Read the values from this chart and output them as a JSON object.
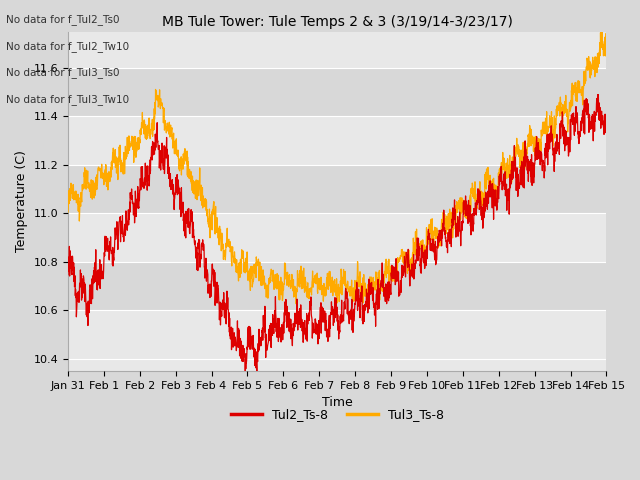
{
  "title": "MB Tule Tower: Tule Temps 2 & 3 (3/19/14-3/23/17)",
  "xlabel": "Time",
  "ylabel": "Temperature (C)",
  "ylim": [
    10.35,
    11.75
  ],
  "yticks": [
    10.4,
    10.6,
    10.8,
    11.0,
    11.2,
    11.4,
    11.6
  ],
  "xtick_labels": [
    "Jan 31",
    "Feb 1",
    "Feb 2",
    "Feb 3",
    "Feb 4",
    "Feb 5",
    "Feb 6",
    "Feb 7",
    "Feb 8",
    "Feb 9",
    "Feb 10",
    "Feb 11",
    "Feb 12",
    "Feb 13",
    "Feb 14",
    "Feb 15"
  ],
  "color_tul2": "#dd0000",
  "color_tul3": "#ffaa00",
  "legend_labels": [
    "Tul2_Ts-8",
    "Tul3_Ts-8"
  ],
  "no_data_texts": [
    "No data for f_Tul2_Ts0",
    "No data for f_Tul2_Tw10",
    "No data for f_Tul3_Ts0",
    "No data for f_Tul3_Tw10"
  ],
  "background_color": "#d8d8d8",
  "plot_bg_color": "#e8e8e8",
  "band_color_light": "#e8e8e8",
  "band_color_dark": "#d8d8d8",
  "title_fontsize": 10,
  "axis_fontsize": 9,
  "tick_fontsize": 8,
  "figsize": [
    6.4,
    4.8
  ],
  "dpi": 100
}
